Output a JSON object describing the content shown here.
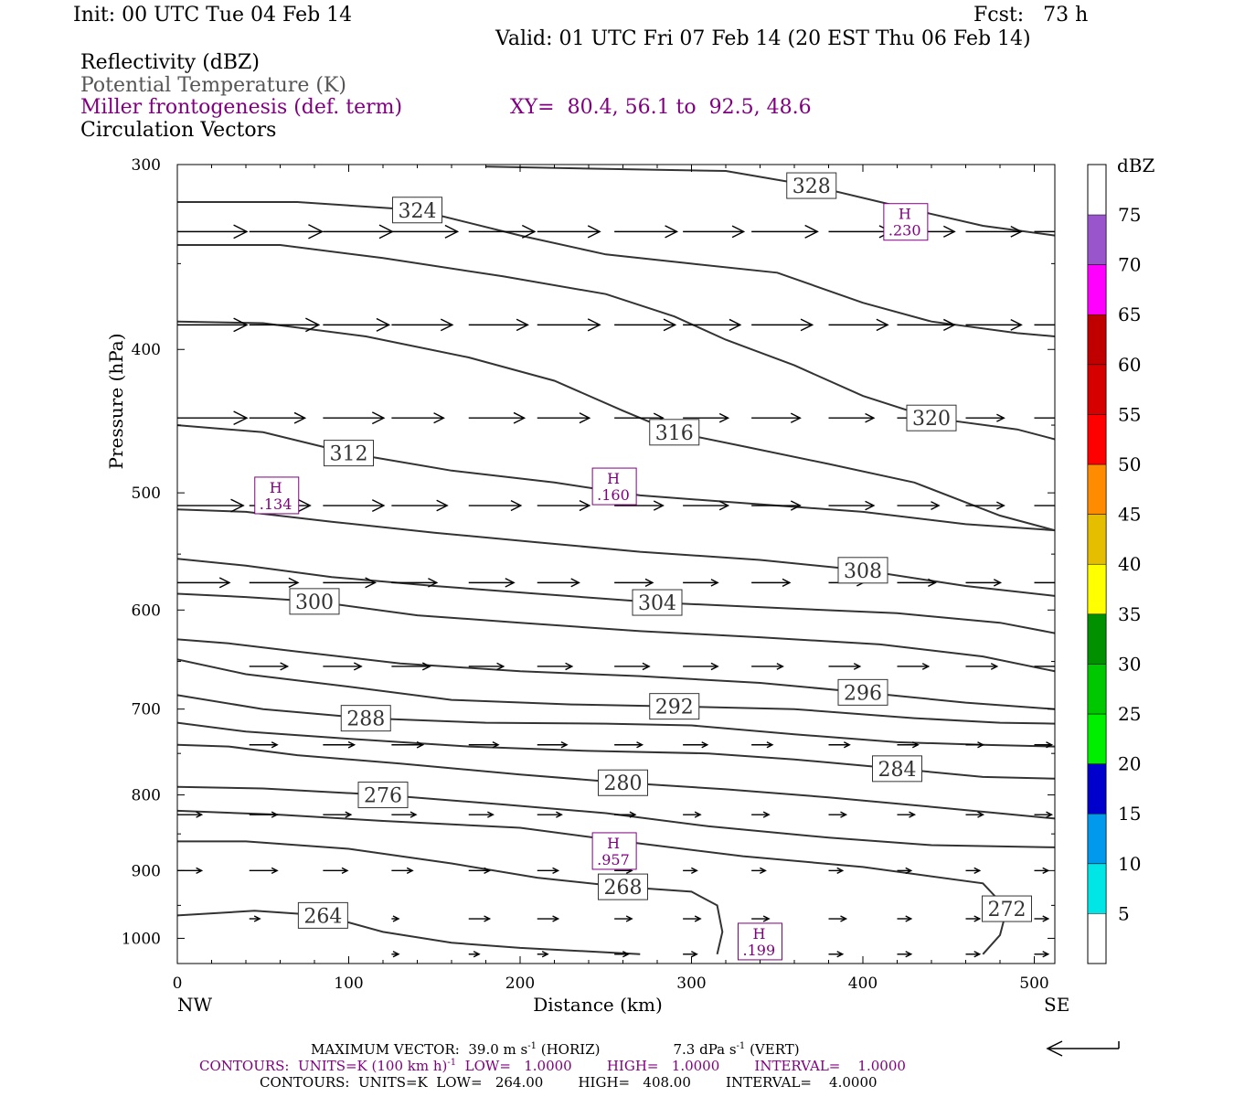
{
  "header": {
    "init": "Init: 00 UTC Tue 04 Feb 14",
    "fcst": "Fcst:   73 h",
    "valid": "Valid: 01 UTC Fri 07 Feb 14 (20 EST Thu 06 Feb 14)",
    "field1": "Reflectivity (dBZ)",
    "field2": "Potential Temperature (K)",
    "field3": "Miller frontogenesis (def. term)",
    "xy": "XY=  80.4, 56.1 to  92.5, 48.6",
    "field4": "Circulation Vectors"
  },
  "colors": {
    "theta": "#333333",
    "fronto": "#800080",
    "vector": "#000000"
  },
  "chart_data": {
    "type": "cross-section contour",
    "xlabel": "Distance (km)",
    "ylabel": "Pressure (hPa)",
    "xlim": [
      0,
      512
    ],
    "ylim": [
      300,
      1040
    ],
    "y_scale": "log",
    "x_ticks": [
      "0",
      "100",
      "200",
      "300",
      "400",
      "500"
    ],
    "x_tick_values": [
      0,
      100,
      200,
      300,
      400,
      500
    ],
    "y_ticks": [
      "300",
      "400",
      "500",
      "600",
      "700",
      "800",
      "900",
      "1000"
    ],
    "y_tick_values": [
      300,
      400,
      500,
      600,
      700,
      800,
      900,
      1000
    ],
    "x_end_labels": [
      "NW",
      "SE"
    ],
    "theta_contours": [
      {
        "label": "264",
        "points": [
          [
            0,
            965
          ],
          [
            45,
            958
          ],
          [
            85,
            965
          ],
          [
            120,
            990
          ],
          [
            160,
            1007
          ],
          [
            200,
            1015
          ],
          [
            250,
            1022
          ],
          [
            270,
            1025
          ]
        ]
      },
      {
        "label": "268",
        "points": [
          [
            0,
            860
          ],
          [
            40,
            860
          ],
          [
            100,
            870
          ],
          [
            160,
            890
          ],
          [
            210,
            910
          ],
          [
            260,
            923
          ],
          [
            300,
            930
          ],
          [
            315,
            950
          ],
          [
            318,
            990
          ],
          [
            315,
            1025
          ]
        ]
      },
      {
        "label": "272",
        "points": [
          [
            0,
            820
          ],
          [
            60,
            825
          ],
          [
            120,
            833
          ],
          [
            200,
            842
          ],
          [
            260,
            860
          ],
          [
            330,
            880
          ],
          [
            400,
            895
          ],
          [
            470,
            918
          ],
          [
            484,
            955
          ],
          [
            480,
            995
          ],
          [
            470,
            1025
          ]
        ]
      },
      {
        "label": "276",
        "points": [
          [
            0,
            790
          ],
          [
            50,
            792
          ],
          [
            120,
            800
          ],
          [
            190,
            812
          ],
          [
            250,
            823
          ],
          [
            310,
            840
          ],
          [
            380,
            855
          ],
          [
            440,
            865
          ],
          [
            512,
            868
          ]
        ]
      },
      {
        "label": "280",
        "points": [
          [
            0,
            740
          ],
          [
            30,
            742
          ],
          [
            70,
            752
          ],
          [
            130,
            762
          ],
          [
            200,
            775
          ],
          [
            260,
            785
          ],
          [
            320,
            793
          ],
          [
            380,
            803
          ],
          [
            440,
            815
          ],
          [
            512,
            830
          ]
        ]
      },
      {
        "label": "284",
        "points": [
          [
            0,
            715
          ],
          [
            40,
            725
          ],
          [
            100,
            733
          ],
          [
            170,
            742
          ],
          [
            240,
            747
          ],
          [
            310,
            750
          ],
          [
            360,
            757
          ],
          [
            420,
            768
          ],
          [
            470,
            778
          ],
          [
            512,
            780
          ]
        ]
      },
      {
        "label": "288",
        "points": [
          [
            0,
            685
          ],
          [
            50,
            700
          ],
          [
            110,
            710
          ],
          [
            180,
            715
          ],
          [
            250,
            716
          ],
          [
            300,
            718
          ],
          [
            360,
            728
          ],
          [
            420,
            737
          ],
          [
            470,
            740
          ],
          [
            512,
            742
          ]
        ]
      },
      {
        "label": "292",
        "points": [
          [
            0,
            648
          ],
          [
            40,
            663
          ],
          [
            100,
            676
          ],
          [
            160,
            690
          ],
          [
            230,
            695
          ],
          [
            290,
            697
          ],
          [
            360,
            700
          ],
          [
            430,
            710
          ],
          [
            480,
            715
          ],
          [
            512,
            716
          ]
        ]
      },
      {
        "label": "296",
        "points": [
          [
            0,
            628
          ],
          [
            30,
            632
          ],
          [
            70,
            640
          ],
          [
            130,
            652
          ],
          [
            200,
            660
          ],
          [
            270,
            665
          ],
          [
            340,
            672
          ],
          [
            400,
            682
          ],
          [
            460,
            693
          ],
          [
            512,
            700
          ]
        ]
      },
      {
        "label": "300",
        "points": [
          [
            0,
            585
          ],
          [
            40,
            588
          ],
          [
            80,
            592
          ],
          [
            140,
            605
          ],
          [
            200,
            612
          ],
          [
            270,
            620
          ],
          [
            340,
            626
          ],
          [
            410,
            633
          ],
          [
            470,
            645
          ],
          [
            512,
            660
          ]
        ]
      },
      {
        "label": "304",
        "points": [
          [
            0,
            554
          ],
          [
            40,
            560
          ],
          [
            90,
            570
          ],
          [
            150,
            578
          ],
          [
            210,
            585
          ],
          [
            280,
            593
          ],
          [
            350,
            598
          ],
          [
            420,
            603
          ],
          [
            480,
            612
          ],
          [
            512,
            622
          ]
        ]
      },
      {
        "label": "308",
        "points": [
          [
            0,
            513
          ],
          [
            40,
            515
          ],
          [
            90,
            523
          ],
          [
            150,
            532
          ],
          [
            210,
            540
          ],
          [
            270,
            548
          ],
          [
            340,
            555
          ],
          [
            400,
            564
          ],
          [
            460,
            578
          ],
          [
            512,
            587
          ]
        ]
      },
      {
        "label": "312",
        "points": [
          [
            0,
            450
          ],
          [
            50,
            455
          ],
          [
            100,
            470
          ],
          [
            160,
            483
          ],
          [
            220,
            492
          ],
          [
            270,
            502
          ],
          [
            330,
            508
          ],
          [
            400,
            515
          ],
          [
            460,
            525
          ],
          [
            512,
            530
          ]
        ]
      },
      {
        "label": "316",
        "points": [
          [
            0,
            383
          ],
          [
            50,
            384
          ],
          [
            110,
            392
          ],
          [
            170,
            405
          ],
          [
            220,
            420
          ],
          [
            260,
            440
          ],
          [
            290,
            455
          ],
          [
            330,
            465
          ],
          [
            380,
            478
          ],
          [
            430,
            492
          ],
          [
            480,
            518
          ],
          [
            512,
            530
          ]
        ]
      },
      {
        "label": "320",
        "points": [
          [
            0,
            340
          ],
          [
            60,
            340
          ],
          [
            120,
            347
          ],
          [
            190,
            357
          ],
          [
            250,
            367
          ],
          [
            290,
            380
          ],
          [
            320,
            394
          ],
          [
            360,
            410
          ],
          [
            400,
            430
          ],
          [
            440,
            445
          ],
          [
            490,
            453
          ],
          [
            512,
            460
          ]
        ]
      },
      {
        "label": "324",
        "points": [
          [
            0,
            318
          ],
          [
            70,
            318
          ],
          [
            140,
            322
          ],
          [
            200,
            335
          ],
          [
            250,
            345
          ],
          [
            300,
            350
          ],
          [
            350,
            355
          ],
          [
            400,
            372
          ],
          [
            440,
            383
          ],
          [
            490,
            390
          ],
          [
            512,
            392
          ]
        ]
      },
      {
        "label": "328",
        "points": [
          [
            180,
            301
          ],
          [
            250,
            302
          ],
          [
            320,
            303
          ],
          [
            370,
            310
          ],
          [
            420,
            320
          ],
          [
            470,
            330
          ],
          [
            512,
            335
          ]
        ]
      }
    ],
    "fronto_maxima": [
      {
        "label": "H",
        "value": ".230",
        "x": 425,
        "p": 328
      },
      {
        "label": "H",
        "value": ".134",
        "x": 58,
        "p": 502
      },
      {
        "label": "H",
        "value": ".160",
        "x": 255,
        "p": 495
      },
      {
        "label": "H",
        "value": ".957",
        "x": 255,
        "p": 873
      },
      {
        "label": "H",
        "value": ".199",
        "x": 340,
        "p": 1005
      }
    ],
    "vector_rows": [
      {
        "p": 333,
        "x": [
          0,
          42,
          85,
          125,
          170,
          210,
          255,
          295,
          335,
          380,
          420,
          460,
          500
        ],
        "len": [
          40,
          42,
          40,
          38,
          38,
          36,
          36,
          35,
          38,
          36,
          33,
          32,
          30
        ]
      },
      {
        "p": 385,
        "x": [
          0,
          42,
          85,
          125,
          170,
          210,
          255,
          295,
          335,
          380,
          420,
          460,
          500
        ],
        "len": [
          40,
          40,
          38,
          35,
          34,
          36,
          35,
          33,
          35,
          34,
          33,
          32,
          30
        ]
      },
      {
        "p": 445,
        "x": [
          0,
          42,
          85,
          125,
          170,
          210,
          255,
          295,
          335,
          380,
          420,
          460,
          500
        ],
        "len": [
          40,
          32,
          35,
          30,
          32,
          30,
          28,
          26,
          28,
          26,
          24,
          22,
          20
        ]
      },
      {
        "p": 510,
        "x": [
          0,
          42,
          85,
          125,
          170,
          210,
          255,
          295,
          335,
          380,
          420,
          460,
          500
        ],
        "len": [
          38,
          35,
          35,
          32,
          30,
          30,
          28,
          26,
          28,
          26,
          24,
          22,
          20
        ]
      },
      {
        "p": 575,
        "x": [
          0,
          42,
          85,
          125,
          170,
          210,
          255,
          295,
          335,
          380,
          420,
          460,
          500
        ],
        "len": [
          30,
          28,
          30,
          26,
          26,
          24,
          22,
          20,
          22,
          20,
          22,
          20,
          20
        ]
      },
      {
        "p": 655,
        "x": [
          42,
          85,
          125,
          170,
          210,
          255,
          295,
          335,
          380,
          420,
          460,
          500
        ],
        "len": [
          22,
          22,
          22,
          20,
          20,
          20,
          20,
          18,
          18,
          18,
          18,
          18
        ]
      },
      {
        "p": 740,
        "x": [
          42,
          85,
          125,
          170,
          210,
          255,
          295,
          335,
          380,
          420,
          460,
          500
        ],
        "len": [
          16,
          18,
          18,
          17,
          17,
          16,
          14,
          12,
          12,
          12,
          10,
          10
        ]
      },
      {
        "p": 825,
        "x": [
          0,
          42,
          85,
          125,
          170,
          210,
          255,
          295,
          335,
          380,
          420,
          460,
          500
        ],
        "len": [
          14,
          16,
          16,
          14,
          14,
          14,
          12,
          10,
          10,
          10,
          10,
          10,
          10
        ]
      },
      {
        "p": 900,
        "x": [
          0,
          42,
          85,
          125,
          170,
          210,
          255,
          295,
          335,
          380,
          420,
          460,
          500
        ],
        "len": [
          14,
          16,
          14,
          12,
          12,
          12,
          10,
          8,
          8,
          8,
          8,
          8,
          8
        ]
      },
      {
        "p": 970,
        "x": [
          42,
          85,
          125,
          170,
          210,
          255,
          295,
          335,
          380,
          420,
          460,
          500
        ],
        "len": [
          6,
          6,
          4,
          12,
          12,
          10,
          10,
          10,
          10,
          8,
          8,
          8
        ]
      },
      {
        "p": 1025,
        "x": [
          125,
          170,
          210,
          255,
          295,
          335,
          380,
          420,
          460,
          500
        ],
        "len": [
          4,
          6,
          6,
          8,
          8,
          8,
          8,
          8,
          8,
          8
        ]
      }
    ],
    "colorbar": {
      "unit": "dBZ",
      "labels": [
        "5",
        "10",
        "15",
        "20",
        "25",
        "30",
        "35",
        "40",
        "45",
        "50",
        "55",
        "60",
        "65",
        "70",
        "75"
      ],
      "colors": [
        "#00e5e5",
        "#0099ee",
        "#0000cc",
        "#00ee00",
        "#00c800",
        "#009000",
        "#ffff00",
        "#e6be00",
        "#ff8c00",
        "#ff0000",
        "#d60000",
        "#c00000",
        "#ff00ff",
        "#9955cc"
      ]
    }
  },
  "footer": {
    "max_vector": "MAXIMUM VECTOR:  39.0 m s",
    "max_vector_sup": "-1",
    "max_vector_horiz": " (HORIZ)",
    "max_vector_vert": "7.3 dPa s",
    "max_vector_vert_sup": "-1",
    "max_vector_vert_tail": " (VERT)",
    "contours1": "CONTOURS:  UNITS=K (100 km h)",
    "contours1_sup": "-1",
    "contours1_tail": "  LOW=   1.0000        HIGH=   1.0000        INTERVAL=    1.0000",
    "contours2": "CONTOURS:  UNITS=K  LOW=   264.00        HIGH=   408.00        INTERVAL=    4.0000"
  }
}
